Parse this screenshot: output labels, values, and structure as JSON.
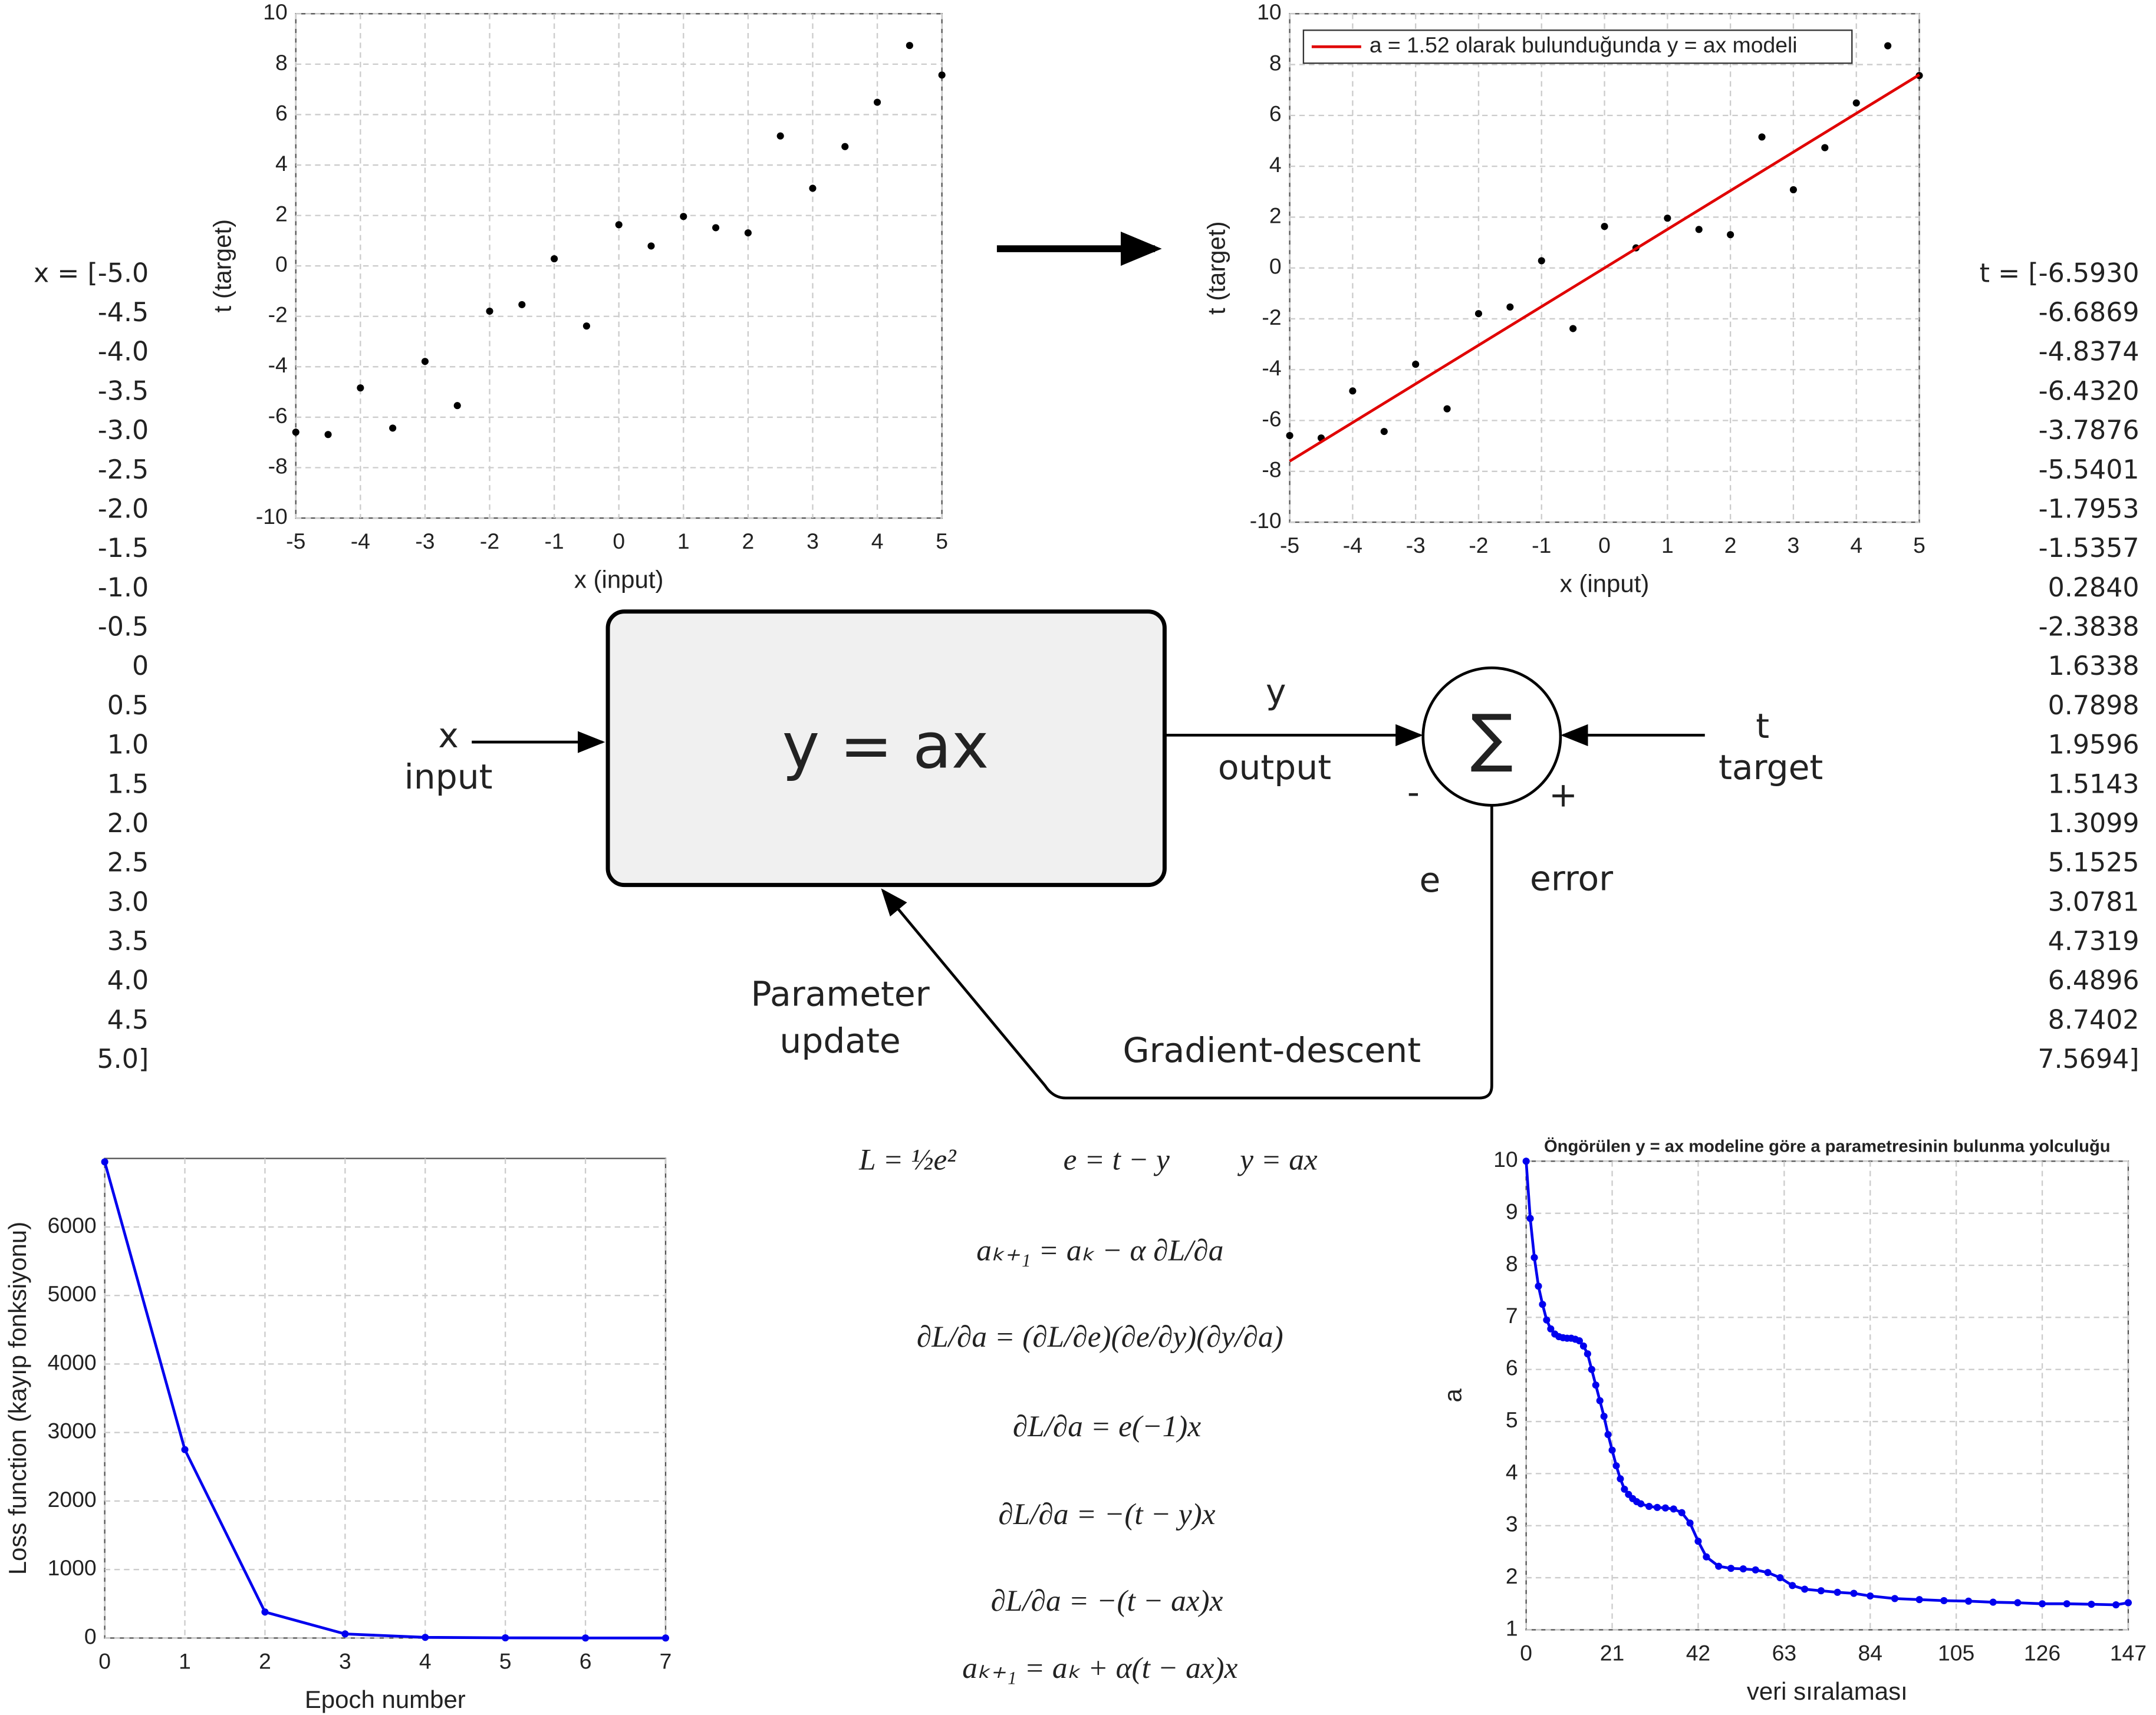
{
  "chart_data": [
    {
      "type": "scatter",
      "xlabel": "x (input)",
      "ylabel": "t (target)",
      "xlim": [
        -5,
        5
      ],
      "ylim": [
        -10,
        10
      ],
      "xticks": [
        -5,
        -4,
        -3,
        -2,
        -1,
        0,
        1,
        2,
        3,
        4,
        5
      ],
      "yticks": [
        -10,
        -8,
        -6,
        -4,
        -2,
        0,
        2,
        4,
        6,
        8,
        10
      ],
      "grid": true,
      "series": [
        {
          "mode": "markers",
          "color": "#000000",
          "x": [
            -5,
            -4.5,
            -4,
            -3.5,
            -3,
            -2.5,
            -2,
            -1.5,
            -1,
            -0.5,
            0,
            0.5,
            1,
            1.5,
            2,
            2.5,
            3,
            3.5,
            4,
            4.5,
            5
          ],
          "values": [
            -6.593,
            -6.6869,
            -4.8374,
            -6.432,
            -3.7876,
            -5.5401,
            -1.7953,
            -1.5357,
            0.284,
            -2.3838,
            1.6338,
            0.7898,
            1.9596,
            1.5143,
            1.3099,
            5.1525,
            3.0781,
            4.7319,
            6.4896,
            8.7402,
            7.5694
          ]
        }
      ]
    },
    {
      "type": "scatter",
      "xlabel": "x (input)",
      "ylabel": "t (target)",
      "xlim": [
        -5,
        5
      ],
      "ylim": [
        -10,
        10
      ],
      "xticks": [
        -5,
        -4,
        -3,
        -2,
        -1,
        0,
        1,
        2,
        3,
        4,
        5
      ],
      "yticks": [
        -10,
        -8,
        -6,
        -4,
        -2,
        0,
        2,
        4,
        6,
        8,
        10
      ],
      "grid": true,
      "legend": "upper left",
      "series": [
        {
          "mode": "markers",
          "color": "#000000",
          "x": [
            -5,
            -4.5,
            -4,
            -3.5,
            -3,
            -2.5,
            -2,
            -1.5,
            -1,
            -0.5,
            0,
            0.5,
            1,
            1.5,
            2,
            2.5,
            3,
            3.5,
            4,
            4.5,
            5
          ],
          "values": [
            -6.593,
            -6.6869,
            -4.8374,
            -6.432,
            -3.7876,
            -5.5401,
            -1.7953,
            -1.5357,
            0.284,
            -2.3838,
            1.6338,
            0.7898,
            1.9596,
            1.5143,
            1.3099,
            5.1525,
            3.0781,
            4.7319,
            6.4896,
            8.7402,
            7.5694
          ]
        },
        {
          "mode": "line",
          "color": "#e00000",
          "name": "a = 1.52 olarak bulunduğunda y = ax modeli",
          "x": [
            -5,
            5
          ],
          "values": [
            -7.6,
            7.6
          ]
        }
      ]
    },
    {
      "type": "line",
      "xlabel": "Epoch number",
      "ylabel": "Loss function (kayıp fonksiyonu)",
      "xlim": [
        0,
        7
      ],
      "ylim": [
        0,
        7000
      ],
      "xticks": [
        0,
        1,
        2,
        3,
        4,
        5,
        6,
        7
      ],
      "yticks": [
        0,
        1000,
        2000,
        3000,
        4000,
        5000,
        6000
      ],
      "grid": true,
      "series": [
        {
          "mode": "line+markers",
          "color": "#0000ee",
          "x": [
            0,
            1,
            2,
            3,
            4,
            5,
            6,
            7
          ],
          "values": [
            6950,
            2750,
            380,
            60,
            10,
            3,
            1,
            0.5
          ]
        }
      ]
    },
    {
      "type": "line",
      "title": "Öngörülen y = ax modeline göre a parametresinin bulunma yolculuğu",
      "xlabel": "veri sıralaması",
      "ylabel": "a",
      "xlim": [
        0,
        147
      ],
      "ylim": [
        1,
        10
      ],
      "xticks": [
        0,
        21,
        42,
        63,
        84,
        105,
        126,
        147
      ],
      "yticks": [
        1,
        2,
        3,
        4,
        5,
        6,
        7,
        8,
        9,
        10
      ],
      "grid": true,
      "series": [
        {
          "mode": "line+markers",
          "color": "#0000ee",
          "x": [
            0,
            1,
            2,
            3,
            4,
            5,
            6,
            7,
            8,
            9,
            10,
            11,
            12,
            13,
            14,
            15,
            16,
            17,
            18,
            19,
            20,
            21,
            22,
            23,
            24,
            25,
            26,
            27,
            28,
            30,
            32,
            34,
            36,
            38,
            40,
            42,
            44,
            47,
            50,
            53,
            56,
            59,
            62,
            65,
            68,
            72,
            76,
            80,
            84,
            90,
            96,
            102,
            108,
            114,
            120,
            126,
            132,
            138,
            144,
            147
          ],
          "values": [
            10,
            8.9,
            8.15,
            7.6,
            7.25,
            6.95,
            6.78,
            6.68,
            6.63,
            6.61,
            6.6,
            6.6,
            6.58,
            6.55,
            6.45,
            6.3,
            6.0,
            5.7,
            5.4,
            5.1,
            4.75,
            4.45,
            4.15,
            3.9,
            3.7,
            3.6,
            3.52,
            3.46,
            3.42,
            3.37,
            3.35,
            3.34,
            3.32,
            3.25,
            3.05,
            2.7,
            2.4,
            2.22,
            2.18,
            2.17,
            2.15,
            2.1,
            2.0,
            1.85,
            1.78,
            1.75,
            1.72,
            1.7,
            1.65,
            1.6,
            1.58,
            1.56,
            1.55,
            1.53,
            1.52,
            1.5,
            1.5,
            1.49,
            1.48,
            1.52
          ]
        }
      ]
    }
  ],
  "x_list": [
    "x = [-5.0",
    "-4.5",
    "-4.0",
    "-3.5",
    "-3.0",
    "-2.5",
    "-2.0",
    "-1.5",
    "-1.0",
    "-0.5",
    "0",
    "0.5",
    "1.0",
    "1.5",
    "2.0",
    "2.5",
    "3.0",
    "3.5",
    "4.0",
    "4.5",
    "5.0]"
  ],
  "t_list": [
    "t = [-6.5930",
    "-6.6869",
    "-4.8374",
    "-6.4320",
    "-3.7876",
    "-5.5401",
    "-1.7953",
    "-1.5357",
    "0.2840",
    "-2.3838",
    "1.6338",
    "0.7898",
    "1.9596",
    "1.5143",
    "1.3099",
    "5.1525",
    "3.0781",
    "4.7319",
    "6.4896",
    "8.7402",
    "7.5694]"
  ],
  "diagram": {
    "model": "y = ax",
    "x": "x",
    "input": "input",
    "y": "y",
    "output": "output",
    "sum": "∑",
    "minus": "-",
    "plus": "+",
    "t": "t",
    "target": "target",
    "e": "e",
    "error": "error",
    "update_1": "Parameter",
    "update_2": "update",
    "gradient": "Gradient-descent"
  },
  "equations": [
    "L = ½e²",
    "e = t − y",
    "y = ax",
    "aₖ₊₁ = aₖ − α ∂L/∂a",
    "∂L/∂a = (∂L/∂e)(∂e/∂y)(∂y/∂a)",
    "∂L/∂a = e(−1)x",
    "∂L/∂a = −(t − y)x",
    "∂L/∂a = −(t − ax)x",
    "aₖ₊₁ = aₖ + α(t − ax)x"
  ]
}
